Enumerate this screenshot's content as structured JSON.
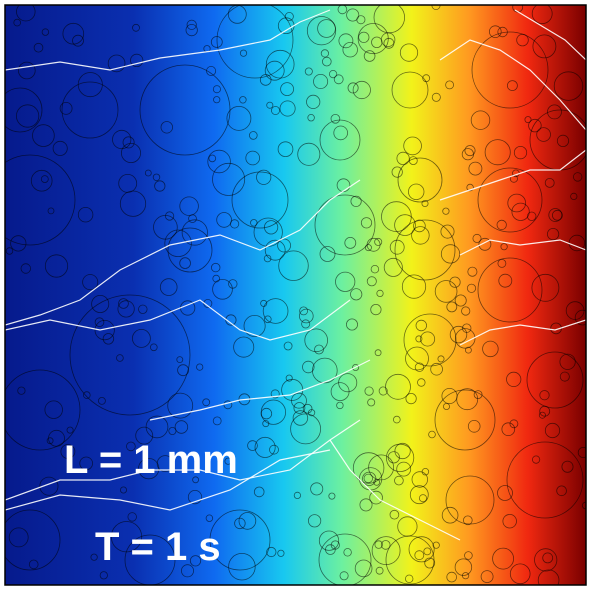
{
  "labels": {
    "length": "L = 1 mm",
    "time": "T = 1 s"
  }
}
